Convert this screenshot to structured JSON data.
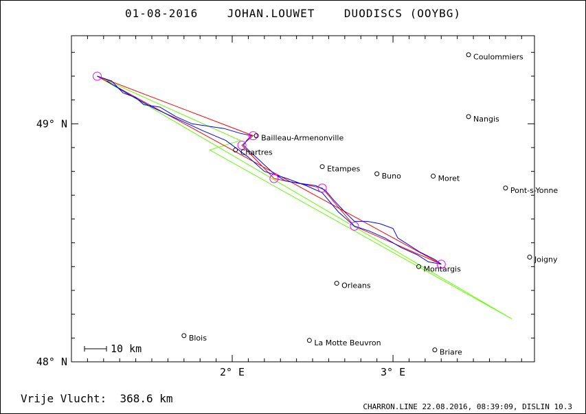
{
  "header": {
    "date": "01-08-2016",
    "pilot": "JOHAN.LOUWET",
    "glider": "DUODISCS (OOYBG)"
  },
  "footer": {
    "distance_label": "Vrije Vlucht:",
    "distance_value": "368.6 km",
    "software": "CHARRON.LINE 22.08.2016, 08:39:09, DISLIN 10.3"
  },
  "scale_bar": {
    "label": "10 km"
  },
  "axes": {
    "lat_ticks": [
      {
        "value": 49,
        "label": "49° N"
      },
      {
        "value": 48,
        "label": "48° N"
      }
    ],
    "lon_ticks": [
      {
        "value": 2,
        "label": "2° E"
      },
      {
        "value": 3,
        "label": "3° E"
      }
    ],
    "lon_range": [
      1.0,
      3.88
    ],
    "lat_range": [
      48.0,
      49.37
    ]
  },
  "colors": {
    "track": "#0000ff",
    "task": "#ff0000",
    "sector": "#66ff00",
    "turnpoint": "#ff00ff",
    "town": "#000000"
  },
  "towns": [
    {
      "name": "Coulommiers",
      "lon": 3.47,
      "lat": 49.29
    },
    {
      "name": "Nangis",
      "lon": 3.47,
      "lat": 49.03
    },
    {
      "name": "Pont-s-Yonne",
      "lon": 3.7,
      "lat": 48.73
    },
    {
      "name": "Joigny",
      "lon": 3.85,
      "lat": 48.44
    },
    {
      "name": "Moret",
      "lon": 3.25,
      "lat": 48.78
    },
    {
      "name": "Buno",
      "lon": 2.9,
      "lat": 48.79
    },
    {
      "name": "Etampes",
      "lon": 2.56,
      "lat": 48.82
    },
    {
      "name": "Bailleau-Armenonville",
      "lon": 2.15,
      "lat": 48.95
    },
    {
      "name": "Chartres",
      "lon": 2.02,
      "lat": 48.89
    },
    {
      "name": "Montargis",
      "lon": 3.16,
      "lat": 48.4
    },
    {
      "name": "Orleans",
      "lon": 2.65,
      "lat": 48.33
    },
    {
      "name": "Blois",
      "lon": 1.7,
      "lat": 48.11
    },
    {
      "name": "La Motte Beuvron",
      "lon": 2.48,
      "lat": 48.09
    },
    {
      "name": "Briare",
      "lon": 3.26,
      "lat": 48.05
    }
  ],
  "turnpoints": [
    {
      "lon": 1.16,
      "lat": 49.2
    },
    {
      "lon": 2.13,
      "lat": 48.95
    },
    {
      "lon": 2.06,
      "lat": 48.91
    },
    {
      "lon": 2.26,
      "lat": 48.77
    },
    {
      "lon": 2.56,
      "lat": 48.73
    },
    {
      "lon": 2.76,
      "lat": 48.57
    },
    {
      "lon": 3.3,
      "lat": 48.41
    }
  ],
  "task_polygon": [
    {
      "lon": 1.16,
      "lat": 49.2
    },
    {
      "lon": 2.13,
      "lat": 48.95
    },
    {
      "lon": 2.06,
      "lat": 48.91
    },
    {
      "lon": 2.26,
      "lat": 48.77
    },
    {
      "lon": 2.56,
      "lat": 48.73
    },
    {
      "lon": 2.76,
      "lat": 48.57
    },
    {
      "lon": 3.3,
      "lat": 48.41
    },
    {
      "lon": 1.16,
      "lat": 49.2
    }
  ],
  "sector_polygon": [
    {
      "lon": 1.16,
      "lat": 49.2
    },
    {
      "lon": 2.05,
      "lat": 48.93
    },
    {
      "lon": 1.86,
      "lat": 48.89
    },
    {
      "lon": 3.74,
      "lat": 48.18
    },
    {
      "lon": 1.16,
      "lat": 49.2
    }
  ],
  "track": [
    {
      "lon": 1.16,
      "lat": 49.2
    },
    {
      "lon": 1.25,
      "lat": 49.18
    },
    {
      "lon": 1.32,
      "lat": 49.13
    },
    {
      "lon": 1.4,
      "lat": 49.11
    },
    {
      "lon": 1.45,
      "lat": 49.08
    },
    {
      "lon": 1.55,
      "lat": 49.07
    },
    {
      "lon": 1.65,
      "lat": 49.03
    },
    {
      "lon": 1.75,
      "lat": 49.0
    },
    {
      "lon": 1.85,
      "lat": 48.99
    },
    {
      "lon": 1.95,
      "lat": 48.98
    },
    {
      "lon": 2.05,
      "lat": 48.96
    },
    {
      "lon": 2.12,
      "lat": 48.95
    },
    {
      "lon": 2.09,
      "lat": 48.93
    },
    {
      "lon": 2.07,
      "lat": 48.91
    },
    {
      "lon": 2.1,
      "lat": 48.89
    },
    {
      "lon": 2.18,
      "lat": 48.84
    },
    {
      "lon": 2.26,
      "lat": 48.79
    },
    {
      "lon": 2.33,
      "lat": 48.76
    },
    {
      "lon": 2.42,
      "lat": 48.75
    },
    {
      "lon": 2.52,
      "lat": 48.74
    },
    {
      "lon": 2.58,
      "lat": 48.72
    },
    {
      "lon": 2.63,
      "lat": 48.68
    },
    {
      "lon": 2.7,
      "lat": 48.63
    },
    {
      "lon": 2.76,
      "lat": 48.59
    },
    {
      "lon": 2.84,
      "lat": 48.59
    },
    {
      "lon": 2.92,
      "lat": 48.58
    },
    {
      "lon": 3.0,
      "lat": 48.56
    },
    {
      "lon": 3.03,
      "lat": 48.52
    },
    {
      "lon": 3.1,
      "lat": 48.49
    },
    {
      "lon": 3.17,
      "lat": 48.46
    },
    {
      "lon": 3.23,
      "lat": 48.44
    },
    {
      "lon": 3.26,
      "lat": 48.43
    },
    {
      "lon": 3.3,
      "lat": 48.41
    },
    {
      "lon": 3.22,
      "lat": 48.42
    },
    {
      "lon": 3.15,
      "lat": 48.45
    },
    {
      "lon": 3.05,
      "lat": 48.48
    },
    {
      "lon": 2.95,
      "lat": 48.52
    },
    {
      "lon": 2.85,
      "lat": 48.55
    },
    {
      "lon": 2.76,
      "lat": 48.57
    },
    {
      "lon": 2.66,
      "lat": 48.63
    },
    {
      "lon": 2.56,
      "lat": 48.71
    },
    {
      "lon": 2.46,
      "lat": 48.74
    },
    {
      "lon": 2.34,
      "lat": 48.77
    },
    {
      "lon": 2.2,
      "lat": 48.8
    },
    {
      "lon": 2.1,
      "lat": 48.86
    },
    {
      "lon": 1.96,
      "lat": 48.93
    },
    {
      "lon": 1.82,
      "lat": 48.97
    },
    {
      "lon": 1.66,
      "lat": 49.02
    },
    {
      "lon": 1.5,
      "lat": 49.07
    },
    {
      "lon": 1.34,
      "lat": 49.13
    },
    {
      "lon": 1.22,
      "lat": 49.18
    }
  ]
}
